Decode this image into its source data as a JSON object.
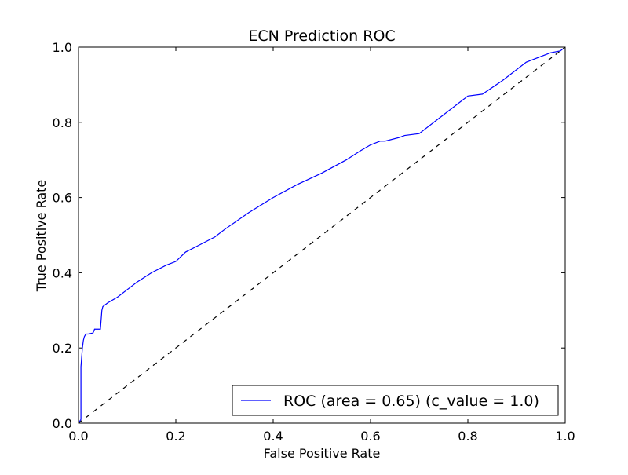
{
  "chart_data": {
    "type": "line",
    "title": "ECN Prediction ROC",
    "xlabel": "False Positive Rate",
    "ylabel": "True Positive Rate",
    "xlim": [
      0.0,
      1.0
    ],
    "ylim": [
      0.0,
      1.0
    ],
    "xticks": [
      "0.0",
      "0.2",
      "0.4",
      "0.6",
      "0.8",
      "1.0"
    ],
    "yticks": [
      "0.0",
      "0.2",
      "0.4",
      "0.6",
      "0.8",
      "1.0"
    ],
    "grid": false,
    "legend_position": "lower right",
    "series": [
      {
        "name": "ROC (area = 0.65) (c_value = 1.0)",
        "color": "#0000ff",
        "style": "solid",
        "x": [
          0.0,
          0.005,
          0.005,
          0.008,
          0.01,
          0.012,
          0.015,
          0.02,
          0.03,
          0.033,
          0.045,
          0.048,
          0.05,
          0.06,
          0.08,
          0.1,
          0.12,
          0.15,
          0.18,
          0.2,
          0.22,
          0.25,
          0.28,
          0.3,
          0.35,
          0.4,
          0.45,
          0.5,
          0.55,
          0.58,
          0.6,
          0.62,
          0.63,
          0.66,
          0.67,
          0.7,
          0.75,
          0.8,
          0.83,
          0.87,
          0.92,
          0.95,
          0.97,
          0.99,
          1.0
        ],
        "y": [
          0.0,
          0.01,
          0.15,
          0.2,
          0.22,
          0.23,
          0.237,
          0.237,
          0.24,
          0.25,
          0.25,
          0.3,
          0.31,
          0.32,
          0.335,
          0.355,
          0.375,
          0.4,
          0.42,
          0.43,
          0.455,
          0.475,
          0.495,
          0.515,
          0.56,
          0.6,
          0.635,
          0.665,
          0.7,
          0.725,
          0.74,
          0.75,
          0.75,
          0.76,
          0.765,
          0.77,
          0.82,
          0.87,
          0.875,
          0.91,
          0.96,
          0.975,
          0.985,
          0.99,
          1.0
        ]
      },
      {
        "name": "",
        "color": "#000000",
        "style": "dashed",
        "x": [
          0.0,
          1.0
        ],
        "y": [
          0.0,
          1.0
        ]
      }
    ]
  }
}
